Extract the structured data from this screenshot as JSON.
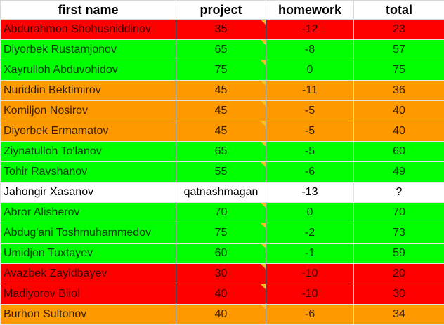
{
  "headers": {
    "name": "first name",
    "project": "project",
    "homework": "homework",
    "total": "total"
  },
  "colors": {
    "red": "#ff0000",
    "green": "#00ff00",
    "orange": "#ff9900",
    "white": "#ffffff",
    "note_marker": "#f0c419"
  },
  "rows": [
    {
      "name": "Abdurahmon Shohusniddinov",
      "project": "35",
      "homework": "-12",
      "total": "23",
      "status": "red"
    },
    {
      "name": "Diyorbek Rustamjonov",
      "project": "65",
      "homework": "-8",
      "total": "57",
      "status": "green"
    },
    {
      "name": "Xayrulloh Abduvohidov",
      "project": "75",
      "homework": "0",
      "total": "75",
      "status": "green"
    },
    {
      "name": "Nuriddin Bektimirov",
      "project": "45",
      "homework": "-11",
      "total": "36",
      "status": "orange"
    },
    {
      "name": "Komiljon Nosirov",
      "project": "45",
      "homework": "-5",
      "total": "40",
      "status": "orange"
    },
    {
      "name": "Diyorbek Ermamatov",
      "project": "45",
      "homework": "-5",
      "total": "40",
      "status": "orange"
    },
    {
      "name": "Ziynatulloh To'lanov",
      "project": "65",
      "homework": "-5",
      "total": "60",
      "status": "green"
    },
    {
      "name": "Tohir Ravshanov",
      "project": "55",
      "homework": "-6",
      "total": "49",
      "status": "green"
    },
    {
      "name": "Jahongir Xasanov",
      "project": "qatnashmagan",
      "homework": "-13",
      "total": "?",
      "status": "white"
    },
    {
      "name": "Abror Alisherov",
      "project": "70",
      "homework": "0",
      "total": "70",
      "status": "green"
    },
    {
      "name": "Abdug'ani Toshmuhammedov",
      "project": "75",
      "homework": "-2",
      "total": "73",
      "status": "green"
    },
    {
      "name": "Umidjon Tuxtayev",
      "project": "60",
      "homework": "-1",
      "total": "59",
      "status": "green"
    },
    {
      "name": "Avazbek Zayidbayev",
      "project": "30",
      "homework": "-10",
      "total": "20",
      "status": "red"
    },
    {
      "name": "Madiyorov Biiol",
      "project": "40",
      "homework": "-10",
      "total": "30",
      "status": "red"
    },
    {
      "name": "Burhon Sultonov",
      "project": "40",
      "homework": "-6",
      "total": "34",
      "status": "orange"
    }
  ]
}
